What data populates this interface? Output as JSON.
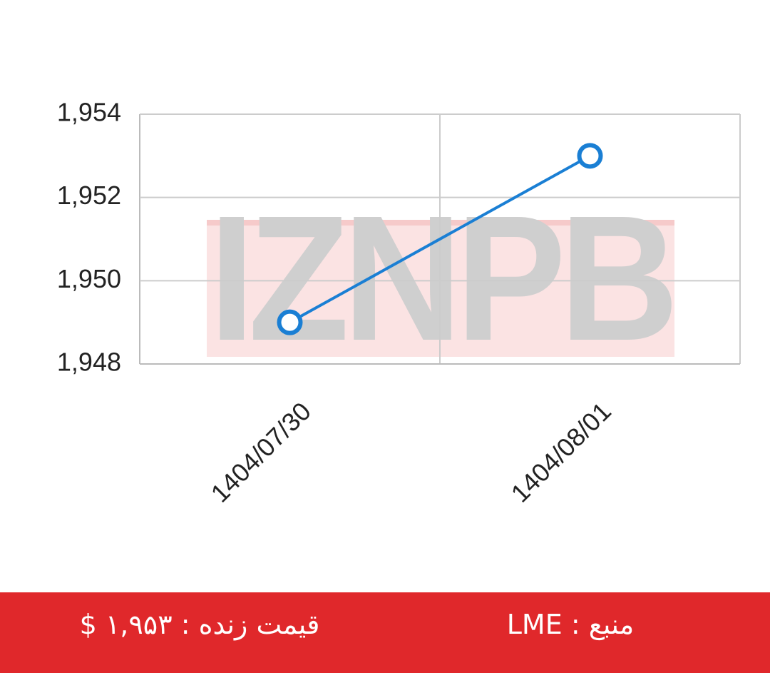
{
  "chart_data": {
    "type": "line",
    "categories": [
      "1404/07/30",
      "1404/08/01"
    ],
    "values": [
      1949,
      1953
    ],
    "color": "#1a7fd4",
    "ylim": [
      1948,
      1954
    ],
    "yticks": [
      {
        "value": 1948,
        "label": "1,948"
      },
      {
        "value": 1950,
        "label": "1,950"
      },
      {
        "value": 1952,
        "label": "1,952"
      },
      {
        "value": 1954,
        "label": "1,954"
      }
    ],
    "grid": true,
    "watermark": "IZNPB"
  },
  "footer": {
    "price": "قیمت زنده : ۱,۹۵۳ $",
    "source": "منبع : LME"
  }
}
